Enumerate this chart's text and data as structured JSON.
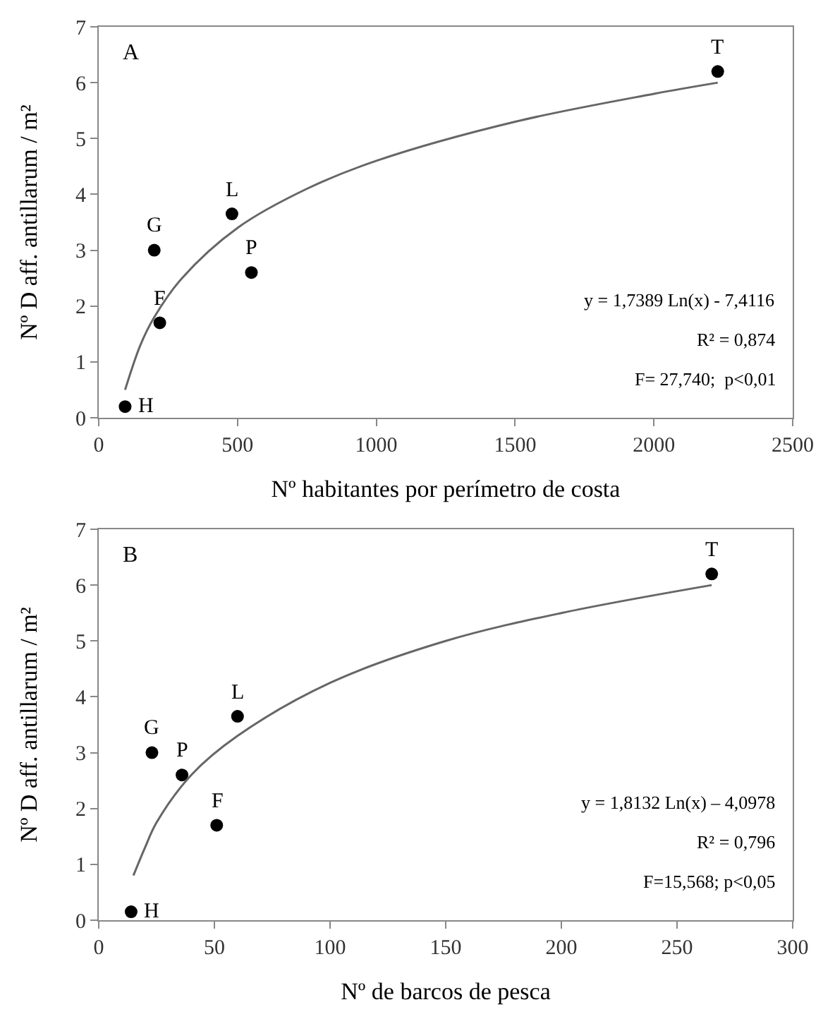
{
  "chart_data": [
    {
      "type": "scatter",
      "xlabel": "Nº habitantes por perímetro de costa",
      "ylabel": "Nº D aff. antillarum / m²",
      "xlim": [
        0,
        2500
      ],
      "xticks": [
        0,
        500,
        1000,
        1500,
        2000,
        2500
      ],
      "ylim": [
        0,
        7
      ],
      "yticks": [
        0,
        1,
        2,
        3,
        4,
        5,
        6,
        7
      ],
      "grid": false,
      "series": [
        {
          "color": "#000000",
          "marker": "circle",
          "x": [
            95,
            200,
            220,
            480,
            550,
            2230
          ],
          "values": [
            0.2,
            3.0,
            1.7,
            3.65,
            2.6,
            6.2
          ]
        },
        {
          "type": "line",
          "color": "#666666",
          "marker": "none",
          "line_style": "solid",
          "x": [
            95,
            150,
            200,
            300,
            500,
            750,
            1000,
            1500,
            2000,
            2230
          ],
          "values": [
            0.5,
            1.3,
            1.8,
            2.5,
            3.4,
            4.1,
            4.6,
            5.3,
            5.8,
            6.0
          ]
        }
      ],
      "annotations": [
        "A",
        "y = 1,7389 Ln(x) - 7,4116",
        "R² = 0,874",
        "F= 27,740;  p<0,01",
        {
          "text": "H",
          "x": 95,
          "y": 0.2
        },
        {
          "text": "G",
          "x": 200,
          "y": 3.0
        },
        {
          "text": "F",
          "x": 220,
          "y": 1.7
        },
        {
          "text": "L",
          "x": 480,
          "y": 3.65
        },
        {
          "text": "P",
          "x": 550,
          "y": 2.6
        },
        {
          "text": "T",
          "x": 2230,
          "y": 6.2
        }
      ]
    },
    {
      "type": "scatter",
      "xlabel": "Nº de barcos de pesca",
      "ylabel": "Nº D aff. antillarum / m²",
      "xlim": [
        0,
        300
      ],
      "xticks": [
        0,
        50,
        100,
        150,
        200,
        250,
        300
      ],
      "ylim": [
        0,
        7
      ],
      "yticks": [
        0,
        1,
        2,
        3,
        4,
        5,
        6,
        7
      ],
      "grid": false,
      "series": [
        {
          "color": "#000000",
          "marker": "circle",
          "x": [
            14,
            23,
            36,
            51,
            60,
            265
          ],
          "values": [
            0.15,
            3.0,
            2.6,
            1.7,
            3.65,
            6.2
          ]
        },
        {
          "type": "line",
          "color": "#666666",
          "marker": "none",
          "line_style": "solid",
          "x": [
            15,
            20,
            25,
            40,
            60,
            100,
            150,
            200,
            265
          ],
          "values": [
            0.8,
            1.3,
            1.75,
            2.6,
            3.3,
            4.25,
            5.0,
            5.5,
            6.0
          ]
        }
      ],
      "annotations": [
        "B",
        "y = 1,8132 Ln(x) – 4,0978",
        "R² = 0,796",
        "F=15,568; p<0,05",
        {
          "text": "H",
          "x": 14,
          "y": 0.15
        },
        {
          "text": "G",
          "x": 23,
          "y": 3.0
        },
        {
          "text": "P",
          "x": 36,
          "y": 2.6
        },
        {
          "text": "F",
          "x": 51,
          "y": 1.7
        },
        {
          "text": "L",
          "x": 60,
          "y": 3.65
        },
        {
          "text": "T",
          "x": 265,
          "y": 6.2
        }
      ]
    }
  ]
}
